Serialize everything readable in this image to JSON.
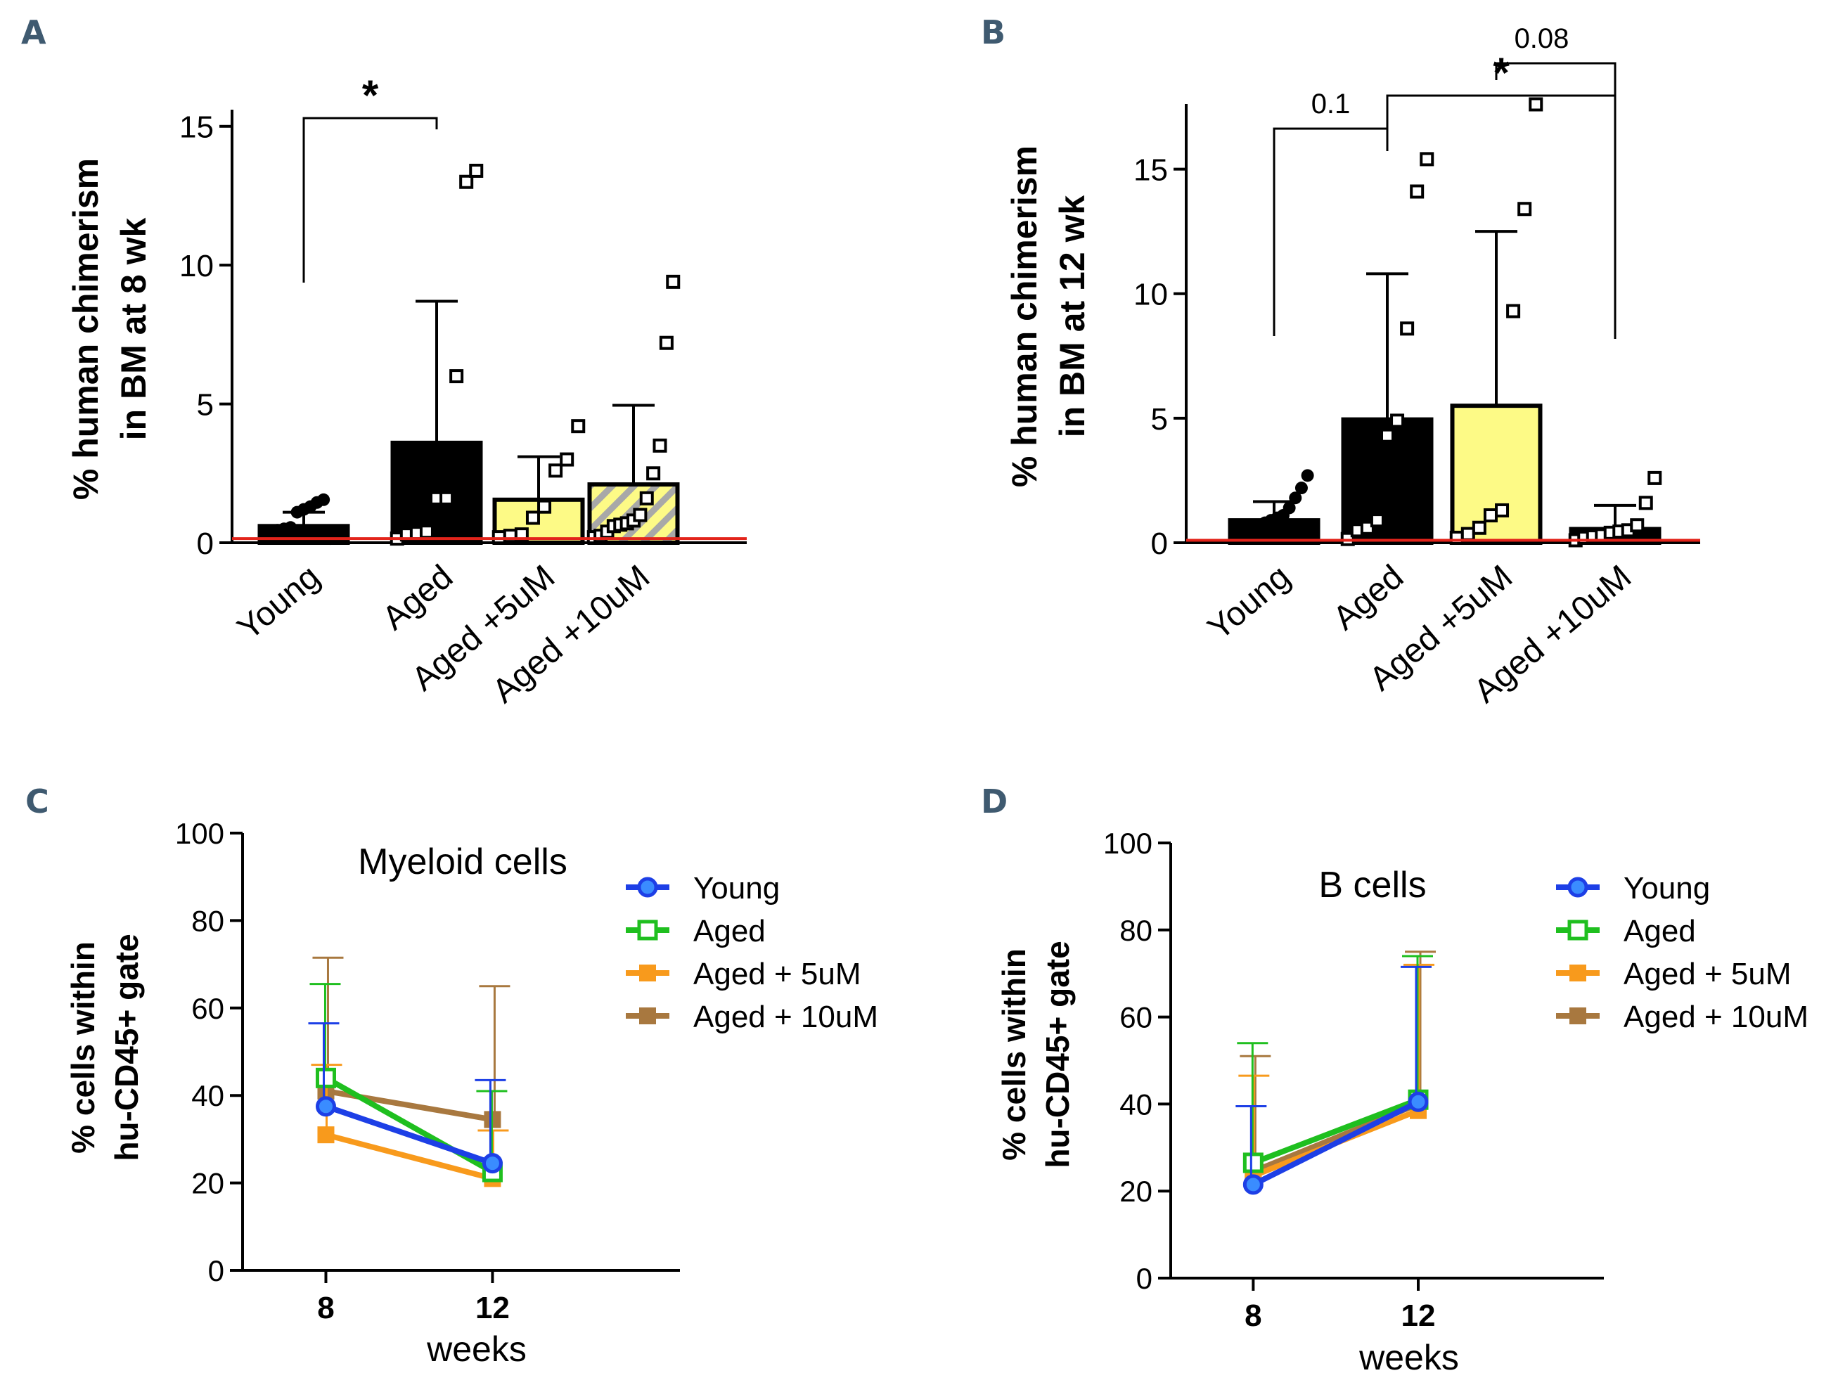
{
  "colors": {
    "black": "#000000",
    "yellow": "#fdfa86",
    "red_line": "#e3241b",
    "young": "#1d3fe6",
    "aged": "#1fbf1f",
    "aged5": "#f89a1c",
    "aged10": "#a8783f",
    "letter": "#3f5a70"
  },
  "chart_data": [
    {
      "panel": "A",
      "type": "bar",
      "ylabel_line1": "% human chimerism",
      "ylabel_line2": "in BM at 8 wk",
      "ylim": [
        0,
        15.5
      ],
      "yticks": [
        0,
        5,
        10,
        15
      ],
      "ytick_labels": [
        "0",
        "5",
        "10",
        "15"
      ],
      "categories": [
        "Young",
        "Aged",
        "Aged +5uM",
        "Aged +10uM"
      ],
      "values": [
        0.6,
        3.6,
        1.55,
        2.1
      ],
      "sd_upper": [
        1.1,
        8.7,
        3.1,
        4.95
      ],
      "threshold": 0.15,
      "points": [
        [
          0.25,
          0.3,
          0.45,
          0.5,
          0.55,
          1.1,
          1.2,
          1.3,
          1.45,
          1.55,
          0.15,
          0.2,
          0.35
        ],
        [
          0.15,
          0.3,
          0.35,
          0.4,
          1.6,
          1.6,
          6.0,
          13.0,
          13.4
        ],
        [
          0.2,
          0.25,
          0.3,
          0.9,
          1.3,
          2.6,
          3.0,
          4.2
        ],
        [
          0.2,
          0.25,
          0.4,
          0.6,
          0.65,
          0.7,
          0.8,
          1.0,
          1.6,
          2.5,
          3.5,
          7.2,
          9.4
        ]
      ],
      "significance": [
        {
          "from": 0,
          "to": 1,
          "label": "*"
        }
      ]
    },
    {
      "panel": "B",
      "type": "bar",
      "ylabel_line1": "% human chimerism",
      "ylabel_line2": "in BM at 12 wk",
      "ylim": [
        0,
        17.5
      ],
      "yticks": [
        0,
        5,
        10,
        15
      ],
      "ytick_labels": [
        "0",
        "5",
        "10",
        "15"
      ],
      "categories": [
        "Young",
        "Aged",
        "Aged +5uM",
        "Aged +10uM"
      ],
      "values": [
        0.9,
        4.95,
        5.5,
        0.55
      ],
      "sd_upper": [
        1.65,
        10.8,
        12.5,
        1.5
      ],
      "threshold": 0.1,
      "points": [
        [
          0.2,
          0.3,
          0.4,
          0.5,
          0.6,
          0.8,
          0.9,
          1.0,
          1.1,
          1.4,
          1.8,
          2.2,
          2.7,
          0.25
        ],
        [
          0.15,
          0.5,
          0.6,
          0.9,
          4.3,
          4.9,
          8.6,
          14.1,
          15.4
        ],
        [
          0.2,
          0.35,
          0.6,
          1.1,
          1.3,
          9.3,
          13.4,
          17.6
        ],
        [
          0.1,
          0.2,
          0.25,
          0.3,
          0.4,
          0.45,
          0.5,
          0.7,
          1.6,
          2.6
        ]
      ],
      "significance": [
        {
          "from": 0,
          "to": 1,
          "label": "0.1"
        },
        {
          "from": 1,
          "to": 3,
          "label": "*"
        },
        {
          "from": 2,
          "to": 3,
          "label": "0.08"
        }
      ]
    },
    {
      "panel": "C",
      "type": "line",
      "title": "Myeloid cells",
      "ylabel_line1": "% cells within",
      "ylabel_line2": "hu-CD45+ gate",
      "xlabel": "weeks",
      "x": [
        8,
        12
      ],
      "xtick_labels": [
        "8",
        "12"
      ],
      "xlim": [
        6,
        16.5
      ],
      "ylim": [
        0,
        100
      ],
      "yticks": [
        0,
        20,
        40,
        60,
        80,
        100
      ],
      "ytick_labels": [
        "0",
        "20",
        "40",
        "60",
        "80",
        "100"
      ],
      "series": [
        {
          "name": "Young",
          "values": [
            37.5,
            24.5
          ],
          "err": [
            56.5,
            43.5
          ],
          "marker": "circle"
        },
        {
          "name": "Aged",
          "values": [
            44,
            22.5
          ],
          "err": [
            65.5,
            41
          ],
          "marker": "square-open"
        },
        {
          "name": "Aged + 5uM",
          "values": [
            31,
            21
          ],
          "err": [
            47,
            32
          ],
          "marker": "square"
        },
        {
          "name": "Aged + 10uM",
          "values": [
            41,
            34.5
          ],
          "err": [
            71.5,
            65
          ],
          "marker": "square"
        }
      ]
    },
    {
      "panel": "D",
      "type": "line",
      "title": "B cells",
      "ylabel_line1": "% cells within",
      "ylabel_line2": "hu-CD45+ gate",
      "xlabel": "weeks",
      "x": [
        8,
        12
      ],
      "xtick_labels": [
        "8",
        "12"
      ],
      "xlim": [
        6,
        16.5
      ],
      "ylim": [
        0,
        100
      ],
      "yticks": [
        0,
        20,
        40,
        60,
        80,
        100
      ],
      "ytick_labels": [
        "0",
        "20",
        "40",
        "60",
        "80",
        "100"
      ],
      "series": [
        {
          "name": "Young",
          "values": [
            21.5,
            40.5
          ],
          "err": [
            39.5,
            71.5
          ],
          "marker": "circle"
        },
        {
          "name": "Aged",
          "values": [
            26.5,
            41
          ],
          "err": [
            54,
            74
          ],
          "marker": "square-open"
        },
        {
          "name": "Aged + 5uM",
          "values": [
            23.5,
            38.5
          ],
          "err": [
            46.5,
            72
          ],
          "marker": "square"
        },
        {
          "name": "Aged + 10uM",
          "values": [
            24.5,
            40
          ],
          "err": [
            51,
            75
          ],
          "marker": "square"
        }
      ]
    }
  ]
}
